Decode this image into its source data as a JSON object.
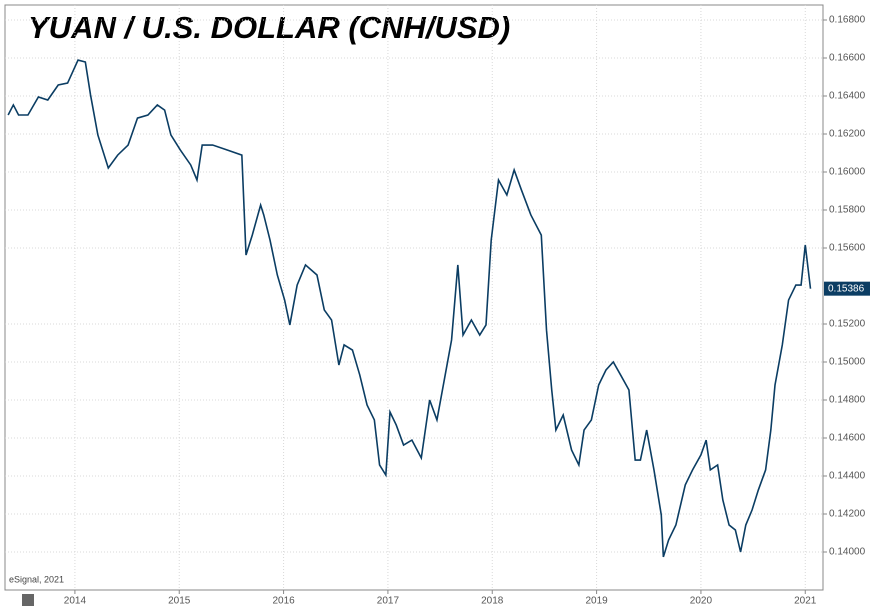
{
  "chart_data": {
    "type": "line",
    "title": "YUAN / U.S. DOLLAR (CNH/USD)",
    "note": "eSignal, 2021",
    "series": [
      {
        "name": "CNH/USD",
        "color": "#0b3d63",
        "x": [
          2013.36,
          2013.41,
          2013.46,
          2013.55,
          2013.65,
          2013.74,
          2013.84,
          2013.93,
          2014.03,
          2014.1,
          2014.15,
          2014.22,
          2014.32,
          2014.41,
          2014.51,
          2014.6,
          2014.7,
          2014.79,
          2014.86,
          2014.92,
          2015.01,
          2015.11,
          2015.17,
          2015.22,
          2015.32,
          2015.46,
          2015.6,
          2015.64,
          2015.7,
          2015.78,
          2015.81,
          2015.87,
          2015.94,
          2016.01,
          2016.06,
          2016.13,
          2016.21,
          2016.32,
          2016.39,
          2016.46,
          2016.53,
          2016.58,
          2016.66,
          2016.73,
          2016.8,
          2016.87,
          2016.92,
          2016.98,
          2017.02,
          2017.08,
          2017.15,
          2017.23,
          2017.32,
          2017.4,
          2017.47,
          2017.54,
          2017.61,
          2017.67,
          2017.72,
          2017.8,
          2017.88,
          2017.94,
          2017.99,
          2018.06,
          2018.14,
          2018.21,
          2018.28,
          2018.37,
          2018.47,
          2018.52,
          2018.57,
          2018.61,
          2018.68,
          2018.76,
          2018.83,
          2018.88,
          2018.95,
          2019.02,
          2019.09,
          2019.16,
          2019.23,
          2019.31,
          2019.37,
          2019.42,
          2019.48,
          2019.55,
          2019.62,
          2019.64,
          2019.69,
          2019.76,
          2019.85,
          2019.92,
          2020.0,
          2020.05,
          2020.09,
          2020.16,
          2020.21,
          2020.27,
          2020.33,
          2020.38,
          2020.43,
          2020.49,
          2020.55,
          2020.62,
          2020.67,
          2020.71,
          2020.78,
          2020.84,
          2020.91,
          2020.96,
          2021.0,
          2021.05
        ],
        "values": [
          0.163,
          0.16353,
          0.163,
          0.163,
          0.16395,
          0.16379,
          0.16458,
          0.16468,
          0.16589,
          0.16579,
          0.16405,
          0.16195,
          0.16021,
          0.16089,
          0.16142,
          0.16284,
          0.163,
          0.16353,
          0.16326,
          0.16195,
          0.16116,
          0.16037,
          0.15958,
          0.16142,
          0.16142,
          0.16116,
          0.16089,
          0.15563,
          0.15668,
          0.15826,
          0.15774,
          0.15642,
          0.15458,
          0.15326,
          0.15195,
          0.15405,
          0.15511,
          0.15458,
          0.15274,
          0.15221,
          0.14984,
          0.1509,
          0.15063,
          0.14932,
          0.14774,
          0.14695,
          0.14458,
          0.14405,
          0.14737,
          0.14668,
          0.14563,
          0.14589,
          0.14495,
          0.148,
          0.14695,
          0.14905,
          0.15116,
          0.15511,
          0.15142,
          0.15221,
          0.15142,
          0.15195,
          0.15642,
          0.15958,
          0.15879,
          0.16011,
          0.15905,
          0.15774,
          0.15668,
          0.15168,
          0.14853,
          0.14642,
          0.14721,
          0.14537,
          0.14458,
          0.14642,
          0.14695,
          0.14879,
          0.14958,
          0.15,
          0.14932,
          0.14853,
          0.14484,
          0.14484,
          0.14642,
          0.14432,
          0.14195,
          0.13974,
          0.14063,
          0.14142,
          0.14353,
          0.14432,
          0.14511,
          0.14589,
          0.14432,
          0.14458,
          0.14274,
          0.14142,
          0.14116,
          0.14,
          0.14142,
          0.14221,
          0.14326,
          0.14432,
          0.14642,
          0.14879,
          0.1509,
          0.15326,
          0.15405,
          0.15405,
          0.15616,
          0.15386
        ]
      }
    ],
    "xlim": [
      2013.33,
      2021.17
    ],
    "xticks": [
      2014,
      2015,
      2016,
      2017,
      2018,
      2019,
      2020,
      2021
    ],
    "ylim": [
      0.138,
      0.16879
    ],
    "yticks": [
      {
        "value": 0.14,
        "label": "0.14000"
      },
      {
        "value": 0.142,
        "label": "0.14200"
      },
      {
        "value": 0.144,
        "label": "0.14400"
      },
      {
        "value": 0.146,
        "label": "0.14600"
      },
      {
        "value": 0.148,
        "label": "0.14800"
      },
      {
        "value": 0.15,
        "label": "0.15000"
      },
      {
        "value": 0.152,
        "label": "0.15200"
      },
      {
        "value": 0.156,
        "label": "0.15600"
      },
      {
        "value": 0.158,
        "label": "0.15800"
      },
      {
        "value": 0.16,
        "label": "0.16000"
      },
      {
        "value": 0.162,
        "label": "0.16200"
      },
      {
        "value": 0.164,
        "label": "0.16400"
      },
      {
        "value": 0.166,
        "label": "0.16600"
      },
      {
        "value": 0.168,
        "label": "0.16800"
      }
    ],
    "grid": true
  }
}
